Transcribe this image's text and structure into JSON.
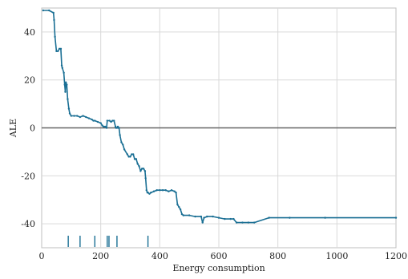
{
  "chart_data": {
    "type": "line",
    "xlabel": "Energy consumption",
    "ylabel": "ALE",
    "xlim": [
      0,
      1200
    ],
    "ylim": [
      -50,
      50
    ],
    "x_ticks": [
      0,
      200,
      400,
      600,
      800,
      1000,
      1200
    ],
    "y_ticks": [
      -40,
      -20,
      0,
      20,
      40
    ],
    "x_tick_labels": [
      "0",
      "200",
      "400",
      "600",
      "800",
      "1000",
      "1200"
    ],
    "y_tick_labels": [
      "-40",
      "-20",
      "0",
      "20",
      "40"
    ],
    "grid": true,
    "reference_line_y": 0,
    "colors": {
      "line": "#1a6f94",
      "rug": "#1a6f94",
      "zero_line": "#666666",
      "grid": "#d9d9d9"
    },
    "series": [
      {
        "x": [
          5,
          25,
          40,
          42,
          45,
          50,
          55,
          60,
          65,
          68,
          70,
          75,
          78,
          80,
          82,
          85,
          88,
          92,
          95,
          100,
          110,
          120,
          130,
          140,
          150,
          160,
          170,
          175,
          180,
          190,
          200,
          205,
          210,
          215,
          220,
          222,
          230,
          235,
          240,
          245,
          250,
          252,
          255,
          258,
          260,
          262,
          265,
          270,
          275,
          280,
          290,
          295,
          300,
          305,
          310,
          315,
          320,
          325,
          330,
          335,
          340,
          345,
          350,
          352,
          355,
          358,
          360,
          365,
          370,
          380,
          390,
          400,
          410,
          420,
          430,
          440,
          450,
          455,
          460,
          465,
          470,
          475,
          480,
          500,
          520,
          540,
          545,
          550,
          560,
          580,
          600,
          620,
          640,
          650,
          660,
          680,
          700,
          720,
          770,
          840,
          960,
          1200
        ],
        "y": [
          49,
          49,
          48,
          45,
          38,
          32,
          32,
          33,
          33,
          26,
          25,
          23,
          18,
          15,
          19,
          18,
          12,
          8,
          6,
          5,
          5,
          5,
          4.5,
          5,
          4.5,
          4,
          3.5,
          3,
          3,
          2.5,
          2,
          1,
          0.5,
          0.5,
          0,
          3,
          3,
          2.5,
          3,
          3,
          0.5,
          0,
          0,
          0.5,
          0,
          0,
          -3,
          -6,
          -7,
          -9,
          -11,
          -12,
          -12,
          -11,
          -11,
          -13,
          -13,
          -15,
          -16,
          -18,
          -17,
          -17,
          -18,
          -21,
          -26,
          -27,
          -27,
          -27.5,
          -27,
          -26.5,
          -26,
          -26,
          -26,
          -26,
          -26.5,
          -26,
          -26.5,
          -27,
          -32,
          -33,
          -34,
          -36,
          -36.5,
          -36.5,
          -37,
          -37,
          -39.5,
          -37.5,
          -37,
          -37,
          -37.5,
          -38,
          -38,
          -38,
          -39.5,
          -39.5,
          -39.5,
          -39.5,
          -37.5,
          -37.5,
          -37.5,
          -37.5
        ]
      }
    ],
    "rug_x": [
      90,
      130,
      180,
      222,
      228,
      255,
      360
    ]
  }
}
